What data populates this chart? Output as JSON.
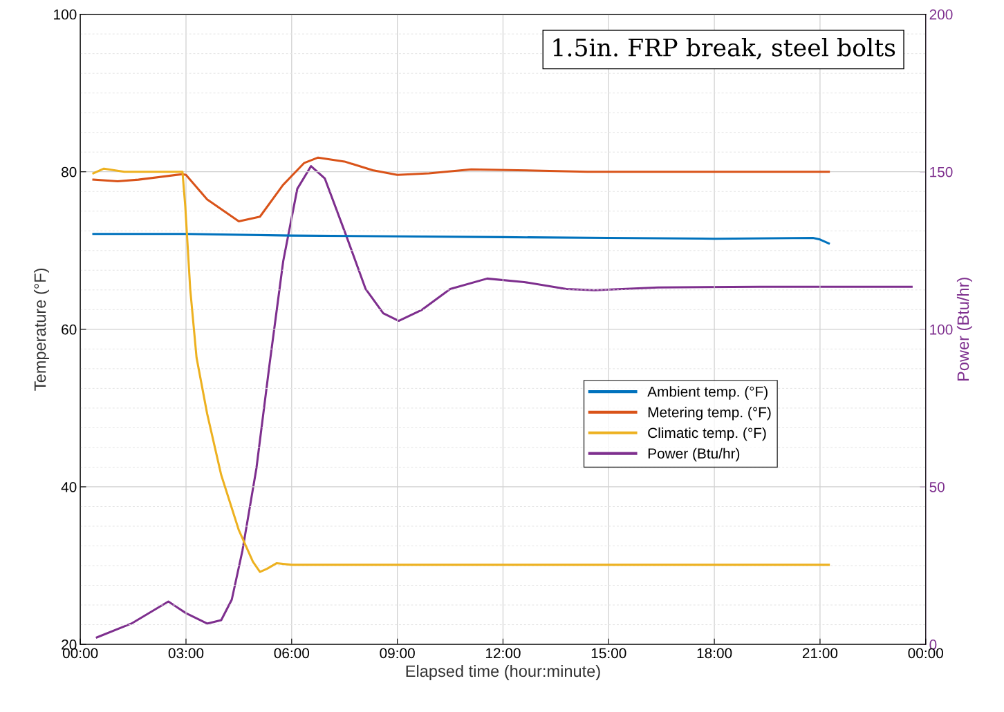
{
  "chart_data": {
    "type": "line",
    "xlabel": "Elapsed time (hour:minute)",
    "ylabel": "Temperature (°F)",
    "y2label": "Power (Btu/hr)",
    "annotations": [
      "1.5in. FRP break, steel bolts"
    ],
    "xlim": [
      0,
      24
    ],
    "xticks": [
      {
        "value": 0,
        "label": "00:00"
      },
      {
        "value": 3,
        "label": "03:00"
      },
      {
        "value": 6,
        "label": "06:00"
      },
      {
        "value": 9,
        "label": "09:00"
      },
      {
        "value": 12,
        "label": "12:00"
      },
      {
        "value": 15,
        "label": "15:00"
      },
      {
        "value": 18,
        "label": "18:00"
      },
      {
        "value": 21,
        "label": "21:00"
      },
      {
        "value": 24,
        "label": "00:00"
      }
    ],
    "ylim": [
      20,
      100
    ],
    "yticks": [
      20,
      40,
      60,
      80,
      100
    ],
    "y2lim": [
      0,
      200
    ],
    "y2ticks": [
      0,
      50,
      100,
      150,
      200
    ],
    "grid": true,
    "legend": "center right",
    "line_style": "solid",
    "marker": "none",
    "series": [
      {
        "name": "Ambient temp. (°F)",
        "color": "#0072bd",
        "x": [
          0.37,
          3,
          6,
          9,
          12,
          15,
          18,
          20.8,
          21.0,
          21.25
        ],
        "values": [
          72.1,
          72.1,
          71.9,
          71.8,
          71.7,
          71.6,
          71.5,
          71.6,
          71.4,
          70.9
        ]
      },
      {
        "name": "Metering temp. (°F)",
        "color": "#d95319",
        "x": [
          0.37,
          1.06,
          1.65,
          2.9,
          3.0,
          3.6,
          4.5,
          5.1,
          5.75,
          6.35,
          6.75,
          7.5,
          8.3,
          9.0,
          9.9,
          11.1,
          12.4,
          14.4,
          21.25
        ],
        "values": [
          79.0,
          78.8,
          79.0,
          79.7,
          79.6,
          76.5,
          73.7,
          74.3,
          78.3,
          81.1,
          81.8,
          81.3,
          80.2,
          79.6,
          79.8,
          80.3,
          80.2,
          80.0,
          80.0
        ]
      },
      {
        "name": "Climatic temp. (°F)",
        "color": "#edb120",
        "x": [
          0.37,
          0.67,
          1.25,
          2.9,
          2.98,
          3.12,
          3.3,
          3.6,
          4.0,
          4.5,
          4.9,
          5.1,
          5.3,
          5.57,
          6.0,
          21.25
        ],
        "values": [
          79.8,
          80.4,
          80.0,
          80.0,
          75.6,
          65.1,
          56.4,
          49.3,
          41.5,
          34.5,
          30.5,
          29.2,
          29.6,
          30.3,
          30.1,
          30.1
        ]
      },
      {
        "name": "Power (Btu/hr)",
        "color": "#7e2f8e",
        "axis": "y2",
        "x": [
          0.47,
          1.45,
          2.5,
          3.0,
          3.6,
          4.0,
          4.3,
          4.6,
          5.0,
          5.37,
          5.76,
          6.16,
          6.55,
          6.94,
          7.53,
          8.1,
          8.6,
          9.04,
          9.7,
          10.5,
          11.55,
          12.6,
          13.8,
          14.6,
          16.4,
          19.3,
          23.6
        ],
        "values": [
          2.2,
          6.6,
          13.6,
          9.9,
          6.6,
          7.7,
          14.2,
          29.6,
          55.9,
          88.7,
          121.6,
          144.6,
          151.8,
          147.9,
          130.3,
          112.8,
          105.1,
          102.7,
          106.2,
          112.8,
          116.1,
          115.0,
          112.8,
          112.4,
          113.3,
          113.5,
          113.5
        ]
      }
    ]
  }
}
